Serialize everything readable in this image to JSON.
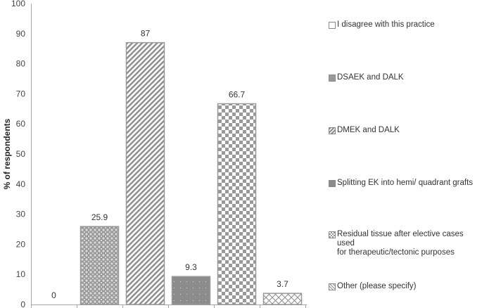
{
  "chart_data": {
    "type": "bar",
    "title": "",
    "xlabel": "",
    "ylabel": "% of respondents",
    "ylim": [
      0,
      100
    ],
    "yticks": [
      0,
      10,
      20,
      30,
      40,
      50,
      60,
      70,
      80,
      90,
      100
    ],
    "grid": false,
    "legend_position": "right",
    "categories": [
      "I disagree with this practice",
      "DSAEK and DALK",
      "DMEK and DALK",
      "Splitting EK into hemi/ quadrant grafts",
      "Residual tissue after elective cases used for therapeutic/tectonic purposes",
      "Other (please specify)"
    ],
    "values": [
      0,
      25.9,
      87,
      9.3,
      66.7,
      3.7
    ],
    "data_labels": [
      "0",
      "25.9",
      "87",
      "9.3",
      "66.7",
      "3.7"
    ],
    "patterns": [
      "empty",
      "dotted-diamond",
      "diagonal-stripes",
      "solid-dots",
      "checkerboard",
      "lattice"
    ]
  },
  "legend": {
    "items": [
      {
        "label": "I disagree with this practice",
        "pattern": "empty"
      },
      {
        "label": "DSAEK and DALK",
        "pattern": "dotted-diamond"
      },
      {
        "label": "DMEK and DALK",
        "pattern": "diagonal-stripes"
      },
      {
        "label": "Splitting EK into hemi/ quadrant grafts",
        "pattern": "solid-dots"
      },
      {
        "label": "Residual tissue after elective cases used\nfor therapeutic/tectonic purposes",
        "pattern": "checkerboard"
      },
      {
        "label": "Other (please specify)",
        "pattern": "lattice"
      }
    ]
  },
  "colors": {
    "axis": "#a6a6a6",
    "bar_border": "#999999",
    "pattern_dark": "#8c8c8c",
    "text": "#333333"
  }
}
